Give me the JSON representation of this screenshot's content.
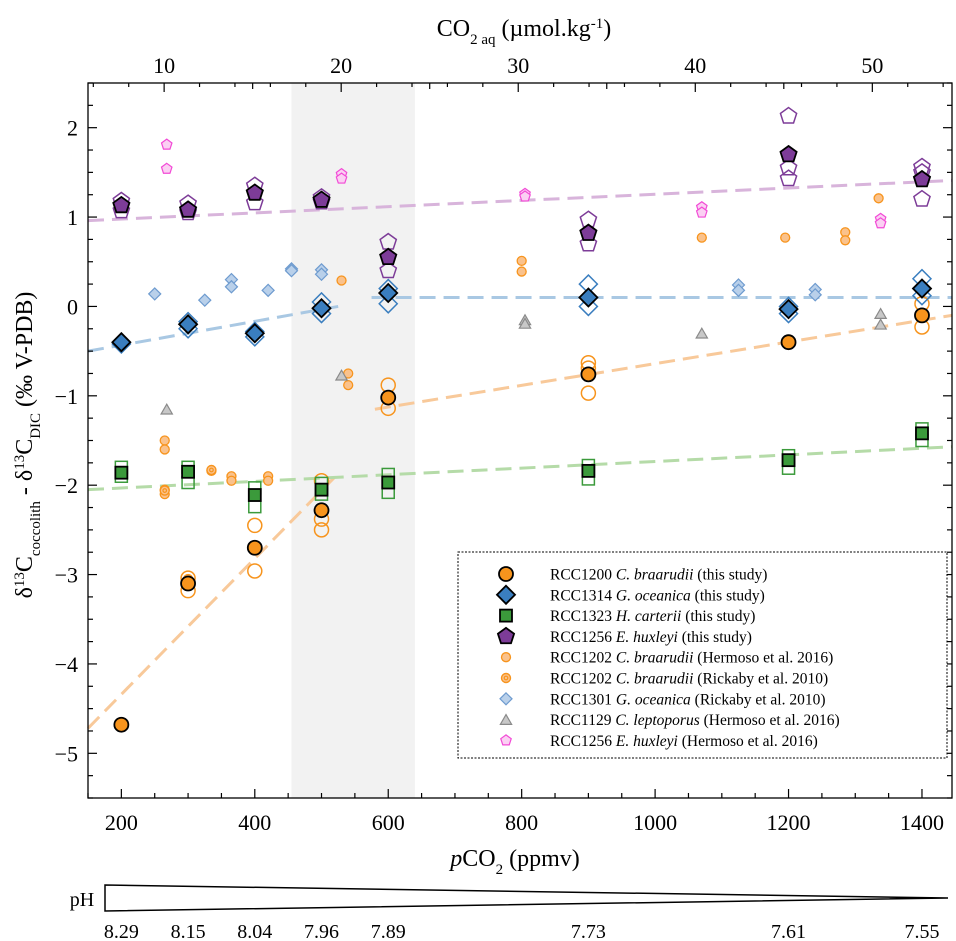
{
  "chart_data": {
    "type": "scatter",
    "x_axis": {
      "label": "pCO2 (ppmv)",
      "label_italic": "p",
      "label_main": "CO",
      "label_sub": "2",
      "label_unit": " (ppmv)",
      "range": [
        150,
        1445
      ],
      "ticks": [
        200,
        400,
        600,
        800,
        1000,
        1200,
        1400
      ]
    },
    "top_axis": {
      "label": "CO2 aq (µmol.kg-1)",
      "label_main": "CO",
      "label_sub": "2 aq",
      "label_unit": " (µmol.kg",
      "label_sup": "-1",
      "label_end": ")",
      "range": [
        5.7,
        54.5
      ],
      "ticks": [
        10,
        20,
        30,
        40,
        50
      ]
    },
    "y_axis": {
      "label": "δ13Ccoccolith - δ13CDIC (‰ V-PDB)",
      "label_a": "δ",
      "label_sup1": "13",
      "label_b": "C",
      "label_sub1": "coccolith",
      "label_c": " - δ",
      "label_sup2": "13",
      "label_d": "C",
      "label_sub2": "DIC",
      "label_e": " (‰ V-PDB)",
      "range": [
        -5.5,
        2.5
      ],
      "ticks": [
        -5,
        -4,
        -3,
        -2,
        -1,
        0,
        1,
        2
      ],
      "tick_labels": [
        "−5",
        "−4",
        "−3",
        "−2",
        "−1",
        "0",
        "1",
        "2"
      ]
    },
    "ph_scale": {
      "label": "pH",
      "values": [
        {
          "pco2": 200,
          "label": "8.29"
        },
        {
          "pco2": 300,
          "label": "8.15"
        },
        {
          "pco2": 400,
          "label": "8.04"
        },
        {
          "pco2": 500,
          "label": "7.96"
        },
        {
          "pco2": 600,
          "label": "7.89"
        },
        {
          "pco2": 900,
          "label": "7.73"
        },
        {
          "pco2": 1200,
          "label": "7.61"
        },
        {
          "pco2": 1400,
          "label": "7.55"
        }
      ]
    },
    "shaded_band": {
      "x0": 455,
      "x1": 640,
      "color": "#f2f2f2"
    },
    "trend_lines": [
      {
        "name": "braarudii-low",
        "color": "#f8c99a",
        "points": [
          [
            150,
            -4.72
          ],
          [
            525,
            -1.87
          ]
        ]
      },
      {
        "name": "braarudii-high",
        "color": "#f8c99a",
        "points": [
          [
            580,
            -1.15
          ],
          [
            1445,
            -0.1
          ]
        ]
      },
      {
        "name": "oceanica-low",
        "color": "#a9c8e3",
        "points": [
          [
            150,
            -0.5
          ],
          [
            525,
            0.0
          ]
        ]
      },
      {
        "name": "oceanica-high",
        "color": "#a9c8e3",
        "points": [
          [
            575,
            0.1
          ],
          [
            1445,
            0.1
          ]
        ]
      },
      {
        "name": "carterii",
        "color": "#b5dba8",
        "points": [
          [
            150,
            -2.05
          ],
          [
            1445,
            -1.57
          ]
        ]
      },
      {
        "name": "huxleyi",
        "color": "#d8b4db",
        "points": [
          [
            150,
            0.96
          ],
          [
            1445,
            1.41
          ]
        ]
      }
    ],
    "series": [
      {
        "name": "RCC1200 C. braarudii (this study)",
        "legend_strain": "RCC1200",
        "legend_species": "C. braarudii",
        "legend_ref": "(this study)",
        "marker": "circle",
        "color": "#f7941d",
        "means": [
          [
            200,
            -4.68
          ],
          [
            300,
            -3.1
          ],
          [
            400,
            -2.7
          ],
          [
            500,
            -2.28
          ],
          [
            600,
            -1.02
          ],
          [
            900,
            -0.76
          ],
          [
            1200,
            -0.4
          ],
          [
            1400,
            -0.1
          ]
        ],
        "replicates": [
          [
            300,
            -3.04
          ],
          [
            300,
            -3.18
          ],
          [
            400,
            -2.45
          ],
          [
            400,
            -2.96
          ],
          [
            500,
            -1.95
          ],
          [
            500,
            -2.38
          ],
          [
            500,
            -2.5
          ],
          [
            600,
            -0.88
          ],
          [
            600,
            -1.14
          ],
          [
            900,
            -0.63
          ],
          [
            900,
            -0.69
          ],
          [
            900,
            -0.97
          ],
          [
            1400,
            0.03
          ],
          [
            1400,
            -0.23
          ]
        ]
      },
      {
        "name": "RCC1314 G. oceanica (this study)",
        "legend_strain": "RCC1314",
        "legend_species": "G. oceanica",
        "legend_ref": "(this study)",
        "marker": "diamond",
        "color": "#3a7ebf",
        "means": [
          [
            200,
            -0.4
          ],
          [
            300,
            -0.2
          ],
          [
            400,
            -0.3
          ],
          [
            500,
            -0.02
          ],
          [
            600,
            0.15
          ],
          [
            900,
            0.1
          ],
          [
            1200,
            -0.03
          ],
          [
            1400,
            0.2
          ]
        ],
        "replicates": [
          [
            200,
            -0.42
          ],
          [
            300,
            -0.17
          ],
          [
            300,
            -0.25
          ],
          [
            400,
            -0.28
          ],
          [
            400,
            -0.34
          ],
          [
            500,
            0.05
          ],
          [
            500,
            -0.08
          ],
          [
            600,
            0.2
          ],
          [
            600,
            0.03
          ],
          [
            900,
            0.25
          ],
          [
            900,
            0.0
          ],
          [
            1200,
            0.0
          ],
          [
            1200,
            -0.08
          ],
          [
            1400,
            0.31
          ],
          [
            1400,
            0.12
          ]
        ]
      },
      {
        "name": "RCC1323 H. carterii (this study)",
        "legend_strain": "RCC1323",
        "legend_species": "H. carterii",
        "legend_ref": "(this study)",
        "marker": "square",
        "color": "#3b9a3b",
        "means": [
          [
            200,
            -1.86
          ],
          [
            300,
            -1.85
          ],
          [
            400,
            -2.11
          ],
          [
            500,
            -2.05
          ],
          [
            600,
            -1.97
          ],
          [
            900,
            -1.84
          ],
          [
            1200,
            -1.72
          ],
          [
            1400,
            -1.42
          ]
        ],
        "replicates": [
          [
            200,
            -1.8
          ],
          [
            200,
            -1.9
          ],
          [
            300,
            -1.8
          ],
          [
            300,
            -1.97
          ],
          [
            400,
            -2.03
          ],
          [
            400,
            -2.24
          ],
          [
            500,
            -1.98
          ],
          [
            500,
            -2.1
          ],
          [
            600,
            -1.88
          ],
          [
            600,
            -2.08
          ],
          [
            900,
            -1.78
          ],
          [
            900,
            -1.93
          ],
          [
            1200,
            -1.67
          ],
          [
            1200,
            -1.81
          ],
          [
            1400,
            -1.37
          ],
          [
            1400,
            -1.5
          ]
        ]
      },
      {
        "name": "RCC1256 E. huxleyi (this study)",
        "legend_strain": "RCC1256",
        "legend_species": "E. huxleyi",
        "legend_ref": "(this study)",
        "marker": "pentagon",
        "color": "#7d3c98",
        "means": [
          [
            200,
            1.13
          ],
          [
            300,
            1.08
          ],
          [
            400,
            1.27
          ],
          [
            500,
            1.19
          ],
          [
            600,
            0.55
          ],
          [
            900,
            0.82
          ],
          [
            1200,
            1.7
          ],
          [
            1400,
            1.42
          ]
        ],
        "replicates": [
          [
            200,
            1.18
          ],
          [
            200,
            1.07
          ],
          [
            300,
            1.15
          ],
          [
            300,
            1.05
          ],
          [
            400,
            1.35
          ],
          [
            400,
            1.16
          ],
          [
            500,
            1.22
          ],
          [
            500,
            1.17
          ],
          [
            600,
            0.72
          ],
          [
            600,
            0.4
          ],
          [
            900,
            0.97
          ],
          [
            900,
            0.7
          ],
          [
            1200,
            2.13
          ],
          [
            1200,
            1.55
          ],
          [
            1200,
            1.43
          ],
          [
            1400,
            1.56
          ],
          [
            1400,
            1.5
          ],
          [
            1400,
            1.2
          ]
        ]
      },
      {
        "name": "RCC1202 C. braarudii (Hermoso et al. 2016)",
        "legend_strain": "RCC1202",
        "legend_species": "C. braarudii",
        "legend_ref": "(Hermoso et al. 2016)",
        "marker": "small-circle",
        "color": "#f7941d",
        "points": [
          [
            265,
            -1.5
          ],
          [
            265,
            -1.6
          ],
          [
            265,
            -2.05
          ],
          [
            265,
            -2.1
          ],
          [
            335,
            -1.84
          ],
          [
            365,
            -1.9
          ],
          [
            365,
            -1.95
          ],
          [
            420,
            -1.9
          ],
          [
            420,
            -1.95
          ],
          [
            530,
            0.29
          ],
          [
            540,
            -0.75
          ],
          [
            540,
            -0.88
          ],
          [
            800,
            0.51
          ],
          [
            800,
            0.39
          ],
          [
            1070,
            0.77
          ],
          [
            1195,
            0.77
          ],
          [
            1285,
            0.83
          ],
          [
            1285,
            0.74
          ],
          [
            1335,
            1.21
          ]
        ]
      },
      {
        "name": "RCC1202 C. braarudii (Rickaby et al. 2010)",
        "legend_strain": "RCC1202",
        "legend_species": "C. braarudii",
        "legend_ref": "(Rickaby et al. 2010)",
        "marker": "ring-circle",
        "color": "#f7941d",
        "points": [
          [
            265,
            -2.06
          ],
          [
            300,
            -3.05
          ],
          [
            335,
            -1.83
          ]
        ]
      },
      {
        "name": "RCC1301 G. oceanica (Rickaby et al. 2010)",
        "legend_strain": "RCC1301",
        "legend_species": "G. oceanica",
        "legend_ref": "(Rickaby et al. 2010)",
        "marker": "small-diamond",
        "color": "#8fb3db",
        "points": [
          [
            250,
            0.14
          ],
          [
            325,
            0.07
          ],
          [
            365,
            0.3
          ],
          [
            365,
            0.22
          ],
          [
            420,
            0.18
          ],
          [
            455,
            0.42
          ],
          [
            455,
            0.4
          ],
          [
            500,
            0.41
          ],
          [
            500,
            0.36
          ],
          [
            1125,
            0.24
          ],
          [
            1125,
            0.18
          ],
          [
            1240,
            0.19
          ],
          [
            1240,
            0.13
          ]
        ]
      },
      {
        "name": "RCC1129 C. leptoporus (Hermoso et al. 2016)",
        "legend_strain": "RCC1129",
        "legend_species": "C. leptoporus",
        "legend_ref": "(Hermoso et al. 2016)",
        "marker": "triangle",
        "color": "#a8a8a8",
        "points": [
          [
            268,
            -1.15
          ],
          [
            530,
            -0.77
          ],
          [
            805,
            -0.15
          ],
          [
            805,
            -0.19
          ],
          [
            1070,
            -0.3
          ],
          [
            1338,
            -0.08
          ],
          [
            1338,
            -0.2
          ]
        ]
      },
      {
        "name": "RCC1256 E. huxleyi (Hermoso et al. 2016)",
        "legend_strain": "RCC1256",
        "legend_species": "E. huxleyi",
        "legend_ref": "(Hermoso et al. 2016)",
        "marker": "small-pentagon",
        "color": "#f24ad6",
        "points": [
          [
            268,
            1.81
          ],
          [
            268,
            1.54
          ],
          [
            530,
            1.48
          ],
          [
            530,
            1.43
          ],
          [
            805,
            1.26
          ],
          [
            805,
            1.23
          ],
          [
            1070,
            1.11
          ],
          [
            1070,
            1.05
          ],
          [
            1338,
            0.98
          ],
          [
            1338,
            0.93
          ]
        ]
      }
    ]
  }
}
